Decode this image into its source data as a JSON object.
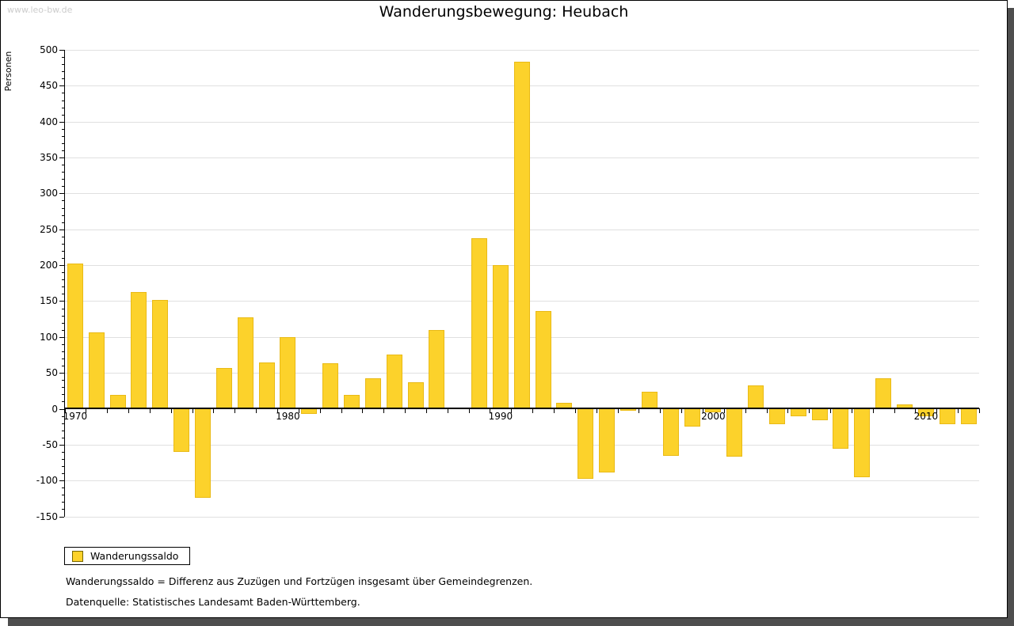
{
  "page": {
    "watermark": "www.leo-bw.de",
    "title": "Wanderungsbewegung: Heubach"
  },
  "chart_data": {
    "type": "bar",
    "title": "Wanderungsbewegung: Heubach",
    "xlabel": "",
    "ylabel": "Personen",
    "ylim": [
      -150,
      500
    ],
    "ytick_step": 50,
    "y_minor_tick_step": 10,
    "grid": "horizontal major gridlines on, vertical off",
    "legend_position": "bottom-left",
    "xtick_labels_shown": [
      "1970",
      "1980",
      "1990",
      "2000",
      "2010"
    ],
    "categories": [
      1970,
      1971,
      1972,
      1973,
      1974,
      1975,
      1976,
      1977,
      1978,
      1979,
      1980,
      1981,
      1982,
      1983,
      1984,
      1985,
      1986,
      1987,
      1988,
      1989,
      1990,
      1991,
      1992,
      1993,
      1994,
      1995,
      1996,
      1997,
      1998,
      1999,
      2000,
      2001,
      2002,
      2003,
      2004,
      2005,
      2006,
      2007,
      2008,
      2009,
      2010,
      2011,
      2012
    ],
    "series": [
      {
        "name": "Wanderungssaldo",
        "values": [
          202,
          106,
          19,
          163,
          152,
          -60,
          -124,
          57,
          127,
          65,
          100,
          -7,
          63,
          19,
          42,
          76,
          37,
          110,
          0,
          238,
          200,
          483,
          136,
          8,
          -98,
          -89,
          -3,
          24,
          -66,
          -25,
          -5,
          -67,
          33,
          -22,
          -11,
          -16,
          -56,
          -95,
          42,
          6,
          -11,
          -22,
          -22
        ]
      }
    ]
  },
  "legend": {
    "label": "Wanderungssaldo"
  },
  "footnotes": {
    "line1": "Wanderungssaldo = Differenz aus Zuzügen und Fortzügen insgesamt über Gemeindegrenzen.",
    "line2": "Datenquelle: Statistisches Landesamt Baden-Württemberg."
  },
  "colors": {
    "bar_fill": "#FCD22B",
    "bar_border": "#E9BA16",
    "legend_swatch_border": "#776600",
    "gridline": "#E0E0E0",
    "axis": "#000000",
    "watermark": "#CCCCCC",
    "shadow": "#4E4E4E"
  }
}
